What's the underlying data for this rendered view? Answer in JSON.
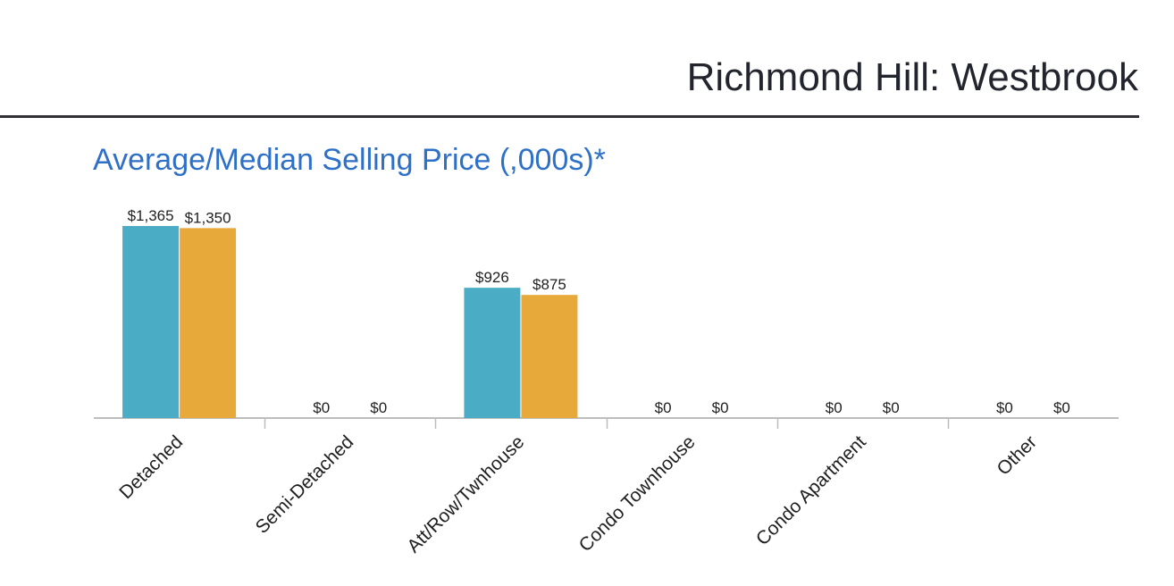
{
  "header": {
    "title": "Richmond Hill: Westbrook"
  },
  "chart_data": {
    "type": "bar",
    "title": "Average/Median Selling Price (,000s)*",
    "xlabel": "",
    "ylabel": "",
    "categories": [
      "Detached",
      "Semi-Detached",
      "Att/Row/Twnhouse",
      "Condo Townhouse",
      "Condo Apartment",
      "Other"
    ],
    "series": [
      {
        "values": [
          1365,
          0,
          926,
          0,
          0,
          0
        ],
        "labels": [
          "$1,365",
          "$0",
          "$926",
          "$0",
          "$0",
          "$0"
        ],
        "color": "#4bacc6"
      },
      {
        "values": [
          1350,
          0,
          875,
          0,
          0,
          0
        ],
        "labels": [
          "$1,350",
          "$0",
          "$875",
          "$0",
          "$0",
          "$0"
        ],
        "color": "#e8a93b"
      }
    ],
    "ylim": [
      0,
      1500
    ],
    "grid": false,
    "legend": "none",
    "title_color": "#2e6fc8",
    "axis_color": "#bdbdbd"
  }
}
